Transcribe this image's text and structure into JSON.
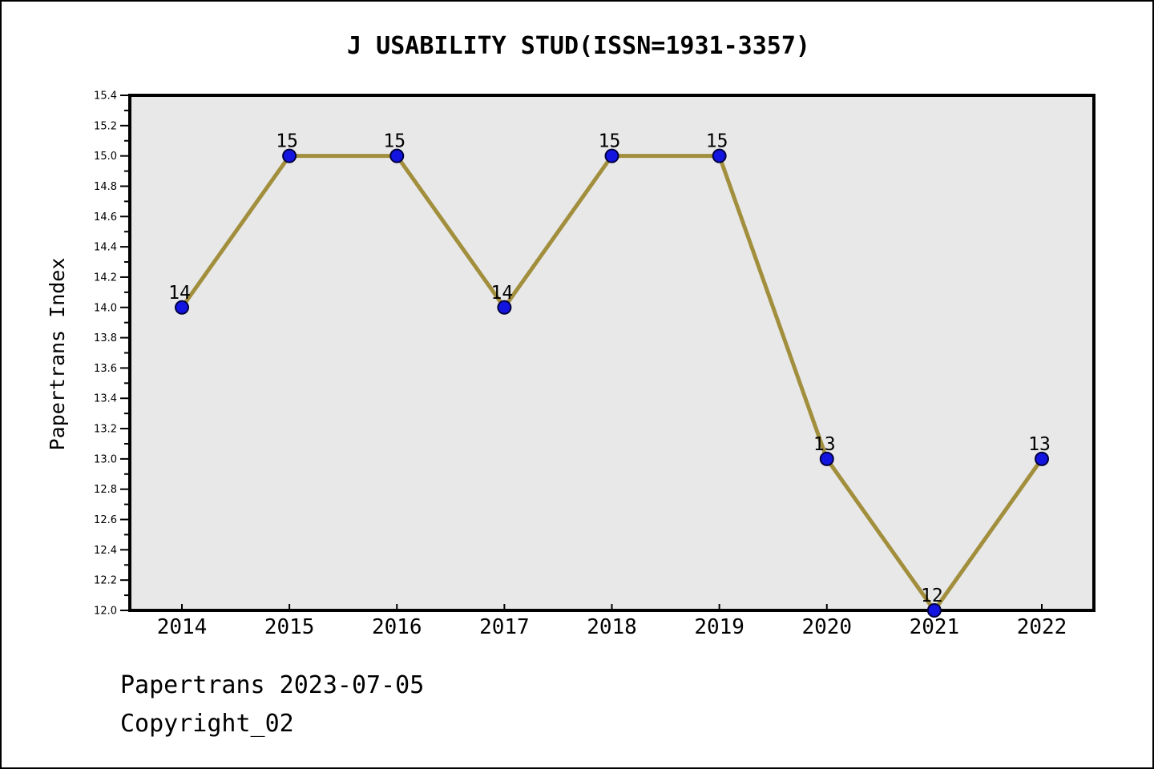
{
  "window": {
    "title": "J USABILITY STUD(ISSN=1931-3357)"
  },
  "footer": {
    "line1": "Papertrans 2023-07-05",
    "line2": "Copyright_02"
  },
  "chart_data": {
    "type": "line",
    "title": "J USABILITY STUD(ISSN=1931-3357)",
    "categories": [
      "2014",
      "2015",
      "2016",
      "2017",
      "2018",
      "2019",
      "2020",
      "2021",
      "2022"
    ],
    "values": [
      14,
      15,
      15,
      14,
      15,
      15,
      13,
      12,
      13
    ],
    "point_labels": [
      "14",
      "15",
      "15",
      "14",
      "15",
      "15",
      "13",
      "12",
      "13"
    ],
    "xlabel": "",
    "ylabel": "Papertrans Index",
    "ylim": [
      12.0,
      15.4
    ],
    "ytick_major_step": 0.2,
    "ytick_minor_step": 0.1,
    "grid": false,
    "legend": null,
    "colors": {
      "line": "#a28f3d",
      "marker_fill": "#1414e0",
      "marker_edge": "#000040",
      "plot_bg": "#e8e8e8",
      "axis": "#000000",
      "text": "#000000",
      "page_bg": "#ffffff"
    }
  }
}
